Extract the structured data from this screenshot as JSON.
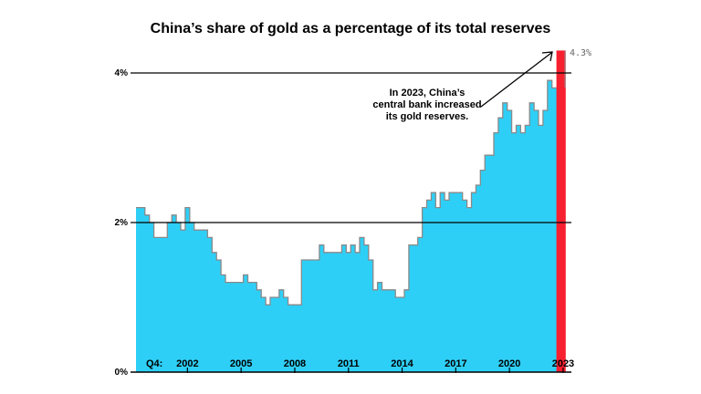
{
  "chart_data": {
    "type": "area",
    "title": "China’s share of gold as a percentage of its total reserves",
    "xlabel": "",
    "ylabel": "",
    "x_prefix_label": "Q4:",
    "start_quarter": "2000Q1",
    "end_quarter": "2023Q4",
    "frequency": "quarterly",
    "values": [
      2.2,
      2.2,
      2.1,
      2.0,
      1.8,
      1.8,
      1.8,
      2.0,
      2.1,
      2.0,
      1.9,
      2.2,
      2.0,
      1.9,
      1.9,
      1.9,
      1.8,
      1.6,
      1.5,
      1.3,
      1.2,
      1.2,
      1.2,
      1.2,
      1.3,
      1.2,
      1.2,
      1.1,
      1.0,
      0.9,
      1.0,
      1.0,
      1.1,
      1.0,
      0.9,
      0.9,
      0.9,
      1.5,
      1.5,
      1.5,
      1.5,
      1.7,
      1.6,
      1.6,
      1.6,
      1.6,
      1.7,
      1.6,
      1.7,
      1.6,
      1.8,
      1.7,
      1.5,
      1.1,
      1.2,
      1.1,
      1.1,
      1.1,
      1.0,
      1.0,
      1.1,
      1.7,
      1.7,
      1.8,
      2.2,
      2.3,
      2.4,
      2.2,
      2.4,
      2.3,
      2.4,
      2.4,
      2.4,
      2.3,
      2.2,
      2.4,
      2.5,
      2.7,
      2.9,
      2.9,
      3.2,
      3.4,
      3.6,
      3.5,
      3.2,
      3.3,
      3.2,
      3.3,
      3.6,
      3.5,
      3.3,
      3.5,
      3.9,
      3.8,
      4.3,
      4.3
    ],
    "highlight_last_n": 2,
    "ylim": [
      0,
      4.3
    ],
    "y_ticks": [
      {
        "value": 0,
        "label": "0%"
      },
      {
        "value": 2,
        "label": "2%"
      },
      {
        "value": 4,
        "label": "4%"
      }
    ],
    "x_ticks": [
      {
        "quarter": "2002Q4",
        "label": "2002"
      },
      {
        "quarter": "2005Q4",
        "label": "2005"
      },
      {
        "quarter": "2008Q4",
        "label": "2008"
      },
      {
        "quarter": "2011Q4",
        "label": "2011"
      },
      {
        "quarter": "2014Q4",
        "label": "2014"
      },
      {
        "quarter": "2017Q4",
        "label": "2017"
      },
      {
        "quarter": "2020Q4",
        "label": "2020"
      },
      {
        "quarter": "2023Q4",
        "label": "2023"
      }
    ],
    "grid": "horizontal at 2% and 4%",
    "end_value_label": "4.3%",
    "annotation": [
      "In 2023, China’s",
      "central bank increased",
      "its gold reserves."
    ],
    "colors": {
      "fill": "#2ecff6",
      "highlight": "#f7202f",
      "outline": "#8a8a8a",
      "grid": "#000000"
    }
  }
}
